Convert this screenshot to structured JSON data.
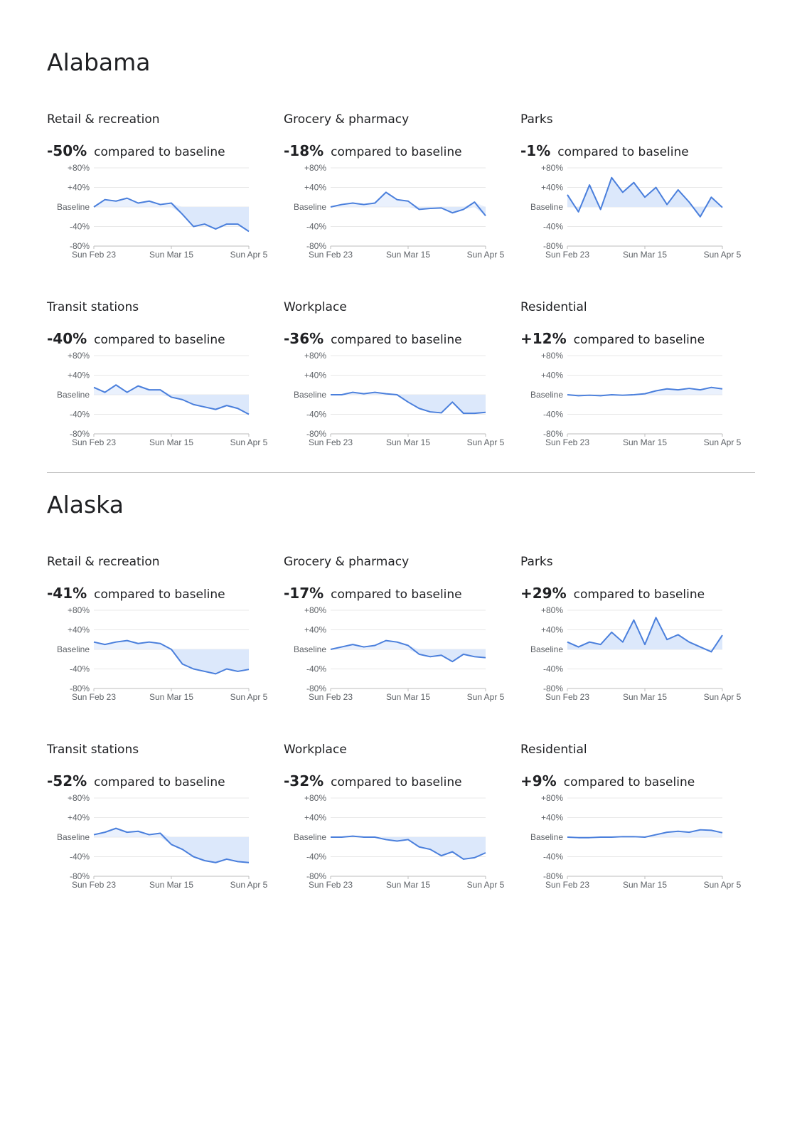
{
  "colors": {
    "line": "#4a7fdc",
    "fill": "#dce8fb",
    "grid": "#e8e8e8",
    "axis_text": "#5f6368"
  },
  "axis": {
    "y_tick_labels": [
      "+80%",
      "+40%",
      "Baseline",
      "-40%",
      "-80%"
    ],
    "x_tick_labels": [
      "Sun Feb 23",
      "Sun Mar 15",
      "Sun Apr 5"
    ]
  },
  "compare_text": "compared to baseline",
  "regions": [
    {
      "name": "Alabama",
      "panels": [
        {
          "category": "Retail & recreation",
          "headline": "-50%"
        },
        {
          "category": "Grocery & pharmacy",
          "headline": "-18%"
        },
        {
          "category": "Parks",
          "headline": "-1%"
        },
        {
          "category": "Transit stations",
          "headline": "-40%"
        },
        {
          "category": "Workplace",
          "headline": "-36%"
        },
        {
          "category": "Residential",
          "headline": "+12%"
        }
      ]
    },
    {
      "name": "Alaska",
      "panels": [
        {
          "category": "Retail & recreation",
          "headline": "-41%"
        },
        {
          "category": "Grocery & pharmacy",
          "headline": "-17%"
        },
        {
          "category": "Parks",
          "headline": "+29%"
        },
        {
          "category": "Transit stations",
          "headline": "-52%"
        },
        {
          "category": "Workplace",
          "headline": "-32%"
        },
        {
          "category": "Residential",
          "headline": "+9%"
        }
      ]
    }
  ],
  "chart_data": [
    {
      "type": "area",
      "region": "Alabama",
      "title": "Retail & recreation",
      "x": [
        "Feb 23",
        "Feb 26",
        "Mar 1",
        "Mar 4",
        "Mar 7",
        "Mar 10",
        "Mar 13",
        "Mar 16",
        "Mar 19",
        "Mar 22",
        "Mar 25",
        "Mar 28",
        "Mar 31",
        "Apr 3",
        "Apr 5"
      ],
      "y": [
        0,
        15,
        12,
        18,
        8,
        12,
        5,
        8,
        -15,
        -40,
        -35,
        -45,
        -35,
        -35,
        -50
      ],
      "ylim": [
        -80,
        80
      ],
      "x_ticks": [
        "Sun Feb 23",
        "Sun Mar 15",
        "Sun Apr 5"
      ]
    },
    {
      "type": "area",
      "region": "Alabama",
      "title": "Grocery & pharmacy",
      "x": [
        "Feb 23",
        "Feb 26",
        "Mar 1",
        "Mar 4",
        "Mar 7",
        "Mar 10",
        "Mar 13",
        "Mar 16",
        "Mar 19",
        "Mar 22",
        "Mar 25",
        "Mar 28",
        "Mar 31",
        "Apr 3",
        "Apr 5"
      ],
      "y": [
        0,
        5,
        8,
        5,
        8,
        30,
        15,
        12,
        -5,
        -3,
        -2,
        -12,
        -5,
        10,
        -18
      ],
      "ylim": [
        -80,
        80
      ],
      "x_ticks": [
        "Sun Feb 23",
        "Sun Mar 15",
        "Sun Apr 5"
      ]
    },
    {
      "type": "line",
      "region": "Alabama",
      "title": "Parks",
      "x": [
        "Feb 23",
        "Feb 26",
        "Mar 1",
        "Mar 4",
        "Mar 7",
        "Mar 10",
        "Mar 13",
        "Mar 16",
        "Mar 19",
        "Mar 22",
        "Mar 25",
        "Mar 28",
        "Mar 31",
        "Apr 3",
        "Apr 5"
      ],
      "y": [
        25,
        -10,
        45,
        -5,
        60,
        30,
        50,
        20,
        40,
        5,
        35,
        10,
        -20,
        20,
        -1
      ],
      "ylim": [
        -80,
        80
      ],
      "x_ticks": [
        "Sun Feb 23",
        "Sun Mar 15",
        "Sun Apr 5"
      ]
    },
    {
      "type": "area",
      "region": "Alabama",
      "title": "Transit stations",
      "x": [
        "Feb 23",
        "Feb 26",
        "Mar 1",
        "Mar 4",
        "Mar 7",
        "Mar 10",
        "Mar 13",
        "Mar 16",
        "Mar 19",
        "Mar 22",
        "Mar 25",
        "Mar 28",
        "Mar 31",
        "Apr 3",
        "Apr 5"
      ],
      "y": [
        15,
        5,
        20,
        5,
        18,
        10,
        10,
        -5,
        -10,
        -20,
        -25,
        -30,
        -22,
        -28,
        -40
      ],
      "ylim": [
        -80,
        80
      ],
      "x_ticks": [
        "Sun Feb 23",
        "Sun Mar 15",
        "Sun Apr 5"
      ]
    },
    {
      "type": "area",
      "region": "Alabama",
      "title": "Workplace",
      "x": [
        "Feb 23",
        "Feb 26",
        "Mar 1",
        "Mar 4",
        "Mar 7",
        "Mar 10",
        "Mar 13",
        "Mar 16",
        "Mar 19",
        "Mar 22",
        "Mar 25",
        "Mar 28",
        "Mar 31",
        "Apr 3",
        "Apr 5"
      ],
      "y": [
        0,
        0,
        5,
        2,
        5,
        2,
        0,
        -15,
        -28,
        -35,
        -37,
        -15,
        -38,
        -38,
        -36
      ],
      "ylim": [
        -80,
        80
      ],
      "x_ticks": [
        "Sun Feb 23",
        "Sun Mar 15",
        "Sun Apr 5"
      ]
    },
    {
      "type": "area",
      "region": "Alabama",
      "title": "Residential",
      "x": [
        "Feb 23",
        "Feb 26",
        "Mar 1",
        "Mar 4",
        "Mar 7",
        "Mar 10",
        "Mar 13",
        "Mar 16",
        "Mar 19",
        "Mar 22",
        "Mar 25",
        "Mar 28",
        "Mar 31",
        "Apr 3",
        "Apr 5"
      ],
      "y": [
        0,
        -2,
        -1,
        -2,
        0,
        -1,
        0,
        2,
        8,
        12,
        10,
        13,
        10,
        15,
        12
      ],
      "ylim": [
        -80,
        80
      ],
      "x_ticks": [
        "Sun Feb 23",
        "Sun Mar 15",
        "Sun Apr 5"
      ]
    },
    {
      "type": "area",
      "region": "Alaska",
      "title": "Retail & recreation",
      "x": [
        "Feb 23",
        "Feb 26",
        "Mar 1",
        "Mar 4",
        "Mar 7",
        "Mar 10",
        "Mar 13",
        "Mar 16",
        "Mar 19",
        "Mar 22",
        "Mar 25",
        "Mar 28",
        "Mar 31",
        "Apr 3",
        "Apr 5"
      ],
      "y": [
        15,
        10,
        15,
        18,
        12,
        15,
        12,
        0,
        -30,
        -40,
        -45,
        -50,
        -40,
        -45,
        -41
      ],
      "ylim": [
        -80,
        80
      ],
      "x_ticks": [
        "Sun Feb 23",
        "Sun Mar 15",
        "Sun Apr 5"
      ]
    },
    {
      "type": "area",
      "region": "Alaska",
      "title": "Grocery & pharmacy",
      "x": [
        "Feb 23",
        "Feb 26",
        "Mar 1",
        "Mar 4",
        "Mar 7",
        "Mar 10",
        "Mar 13",
        "Mar 16",
        "Mar 19",
        "Mar 22",
        "Mar 25",
        "Mar 28",
        "Mar 31",
        "Apr 3",
        "Apr 5"
      ],
      "y": [
        0,
        5,
        10,
        5,
        8,
        18,
        15,
        8,
        -10,
        -15,
        -12,
        -25,
        -10,
        -15,
        -17
      ],
      "ylim": [
        -80,
        80
      ],
      "x_ticks": [
        "Sun Feb 23",
        "Sun Mar 15",
        "Sun Apr 5"
      ]
    },
    {
      "type": "line",
      "region": "Alaska",
      "title": "Parks",
      "x": [
        "Feb 23",
        "Feb 26",
        "Mar 1",
        "Mar 4",
        "Mar 7",
        "Mar 10",
        "Mar 13",
        "Mar 16",
        "Mar 19",
        "Mar 22",
        "Mar 25",
        "Mar 28",
        "Mar 31",
        "Apr 3",
        "Apr 5"
      ],
      "y": [
        15,
        5,
        15,
        10,
        35,
        15,
        60,
        10,
        65,
        20,
        30,
        15,
        5,
        -5,
        29
      ],
      "ylim": [
        -80,
        80
      ],
      "x_ticks": [
        "Sun Feb 23",
        "Sun Mar 15",
        "Sun Apr 5"
      ]
    },
    {
      "type": "area",
      "region": "Alaska",
      "title": "Transit stations",
      "x": [
        "Feb 23",
        "Feb 26",
        "Mar 1",
        "Mar 4",
        "Mar 7",
        "Mar 10",
        "Mar 13",
        "Mar 16",
        "Mar 19",
        "Mar 22",
        "Mar 25",
        "Mar 28",
        "Mar 31",
        "Apr 3",
        "Apr 5"
      ],
      "y": [
        5,
        10,
        18,
        10,
        12,
        5,
        8,
        -15,
        -25,
        -40,
        -48,
        -52,
        -45,
        -50,
        -52
      ],
      "ylim": [
        -80,
        80
      ],
      "x_ticks": [
        "Sun Feb 23",
        "Sun Mar 15",
        "Sun Apr 5"
      ]
    },
    {
      "type": "area",
      "region": "Alaska",
      "title": "Workplace",
      "x": [
        "Feb 23",
        "Feb 26",
        "Mar 1",
        "Mar 4",
        "Mar 7",
        "Mar 10",
        "Mar 13",
        "Mar 16",
        "Mar 19",
        "Mar 22",
        "Mar 25",
        "Mar 28",
        "Mar 31",
        "Apr 3",
        "Apr 5"
      ],
      "y": [
        0,
        0,
        2,
        0,
        0,
        -5,
        -8,
        -5,
        -20,
        -25,
        -38,
        -30,
        -45,
        -42,
        -32
      ],
      "ylim": [
        -80,
        80
      ],
      "x_ticks": [
        "Sun Feb 23",
        "Sun Mar 15",
        "Sun Apr 5"
      ]
    },
    {
      "type": "area",
      "region": "Alaska",
      "title": "Residential",
      "x": [
        "Feb 23",
        "Feb 26",
        "Mar 1",
        "Mar 4",
        "Mar 7",
        "Mar 10",
        "Mar 13",
        "Mar 16",
        "Mar 19",
        "Mar 22",
        "Mar 25",
        "Mar 28",
        "Mar 31",
        "Apr 3",
        "Apr 5"
      ],
      "y": [
        0,
        -1,
        -1,
        0,
        0,
        1,
        1,
        0,
        5,
        10,
        12,
        10,
        15,
        14,
        9
      ],
      "ylim": [
        -80,
        80
      ],
      "x_ticks": [
        "Sun Feb 23",
        "Sun Mar 15",
        "Sun Apr 5"
      ]
    }
  ]
}
